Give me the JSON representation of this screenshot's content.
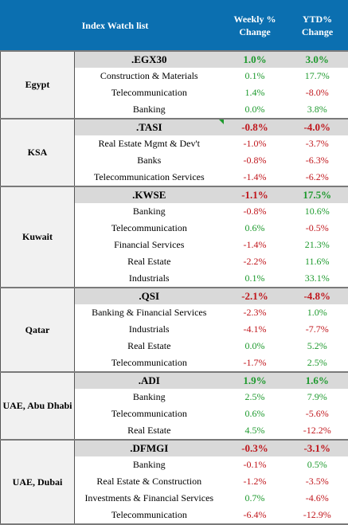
{
  "header": {
    "title": "Index Watch list",
    "weekly": "Weekly % Change",
    "ytd": "YTD% Change"
  },
  "colors": {
    "header_bg": "#0b6fb0",
    "positive": "#1e9a2e",
    "negative": "#c0161c",
    "index_row_bg": "#d9d9d9"
  },
  "groups": [
    {
      "country": "Egypt",
      "index": {
        "name": ".EGX30",
        "weekly": "1.0%",
        "ytd": "3.0%",
        "weekly_sign": "pos",
        "ytd_sign": "pos"
      },
      "sectors": [
        {
          "name": "Construction & Materials",
          "weekly": "0.1%",
          "ytd": "17.7%",
          "weekly_sign": "pos",
          "ytd_sign": "pos"
        },
        {
          "name": "Telecommunication",
          "weekly": "1.4%",
          "ytd": "-8.0%",
          "weekly_sign": "pos",
          "ytd_sign": "neg"
        },
        {
          "name": "Banking",
          "weekly": "0.0%",
          "ytd": "3.8%",
          "weekly_sign": "pos",
          "ytd_sign": "pos"
        }
      ]
    },
    {
      "country": "KSA",
      "index": {
        "name": ".TASI",
        "weekly": "-0.8%",
        "ytd": "-4.0%",
        "weekly_sign": "neg",
        "ytd_sign": "neg"
      },
      "sectors": [
        {
          "name": "Real Estate Mgmt & Dev't",
          "weekly": "-1.0%",
          "ytd": "-3.7%",
          "weekly_sign": "neg",
          "ytd_sign": "neg"
        },
        {
          "name": "Banks",
          "weekly": "-0.8%",
          "ytd": "-6.3%",
          "weekly_sign": "neg",
          "ytd_sign": "neg"
        },
        {
          "name": "Telecommunication Services",
          "weekly": "-1.4%",
          "ytd": "-6.2%",
          "weekly_sign": "neg",
          "ytd_sign": "neg"
        }
      ]
    },
    {
      "country": "Kuwait",
      "index": {
        "name": ".KWSE",
        "weekly": "-1.1%",
        "ytd": "17.5%",
        "weekly_sign": "neg",
        "ytd_sign": "pos"
      },
      "sectors": [
        {
          "name": "Banking",
          "weekly": "-0.8%",
          "ytd": "10.6%",
          "weekly_sign": "neg",
          "ytd_sign": "pos"
        },
        {
          "name": "Telecommunication",
          "weekly": "0.6%",
          "ytd": "-0.5%",
          "weekly_sign": "pos",
          "ytd_sign": "neg"
        },
        {
          "name": "Financial Services",
          "weekly": "-1.4%",
          "ytd": "21.3%",
          "weekly_sign": "neg",
          "ytd_sign": "pos"
        },
        {
          "name": "Real Estate",
          "weekly": "-2.2%",
          "ytd": "11.6%",
          "weekly_sign": "neg",
          "ytd_sign": "pos"
        },
        {
          "name": "Industrials",
          "weekly": "0.1%",
          "ytd": "33.1%",
          "weekly_sign": "pos",
          "ytd_sign": "pos"
        }
      ]
    },
    {
      "country": "Qatar",
      "index": {
        "name": ".QSI",
        "weekly": "-2.1%",
        "ytd": "-4.8%",
        "weekly_sign": "neg",
        "ytd_sign": "neg"
      },
      "sectors": [
        {
          "name": "Banking & Financial Services",
          "weekly": "-2.3%",
          "ytd": "1.0%",
          "weekly_sign": "neg",
          "ytd_sign": "pos"
        },
        {
          "name": "Industrials",
          "weekly": "-4.1%",
          "ytd": "-7.7%",
          "weekly_sign": "neg",
          "ytd_sign": "neg"
        },
        {
          "name": "Real Estate",
          "weekly": "0.0%",
          "ytd": "5.2%",
          "weekly_sign": "pos",
          "ytd_sign": "pos"
        },
        {
          "name": "Telecommunication",
          "weekly": "-1.7%",
          "ytd": "2.5%",
          "weekly_sign": "neg",
          "ytd_sign": "pos"
        }
      ]
    },
    {
      "country": "UAE, Abu Dhabi",
      "index": {
        "name": ".ADI",
        "weekly": "1.9%",
        "ytd": "1.6%",
        "weekly_sign": "pos",
        "ytd_sign": "pos"
      },
      "sectors": [
        {
          "name": "Banking",
          "weekly": "2.5%",
          "ytd": "7.9%",
          "weekly_sign": "pos",
          "ytd_sign": "pos"
        },
        {
          "name": "Telecommunication",
          "weekly": "0.6%",
          "ytd": "-5.6%",
          "weekly_sign": "pos",
          "ytd_sign": "neg"
        },
        {
          "name": "Real Estate",
          "weekly": "4.5%",
          "ytd": "-12.2%",
          "weekly_sign": "pos",
          "ytd_sign": "neg"
        }
      ]
    },
    {
      "country": "UAE, Dubai",
      "index": {
        "name": ".DFMGI",
        "weekly": "-0.3%",
        "ytd": "-3.1%",
        "weekly_sign": "neg",
        "ytd_sign": "neg"
      },
      "sectors": [
        {
          "name": "Banking",
          "weekly": "-0.1%",
          "ytd": "0.5%",
          "weekly_sign": "neg",
          "ytd_sign": "pos"
        },
        {
          "name": "Real Estate & Construction",
          "weekly": "-1.2%",
          "ytd": "-3.5%",
          "weekly_sign": "neg",
          "ytd_sign": "neg"
        },
        {
          "name": "Investments & Financial Services",
          "weekly": "0.7%",
          "ytd": "-4.6%",
          "weekly_sign": "pos",
          "ytd_sign": "neg"
        },
        {
          "name": "Telecommunication",
          "weekly": "-6.4%",
          "ytd": "-12.9%",
          "weekly_sign": "neg",
          "ytd_sign": "neg"
        }
      ]
    }
  ]
}
